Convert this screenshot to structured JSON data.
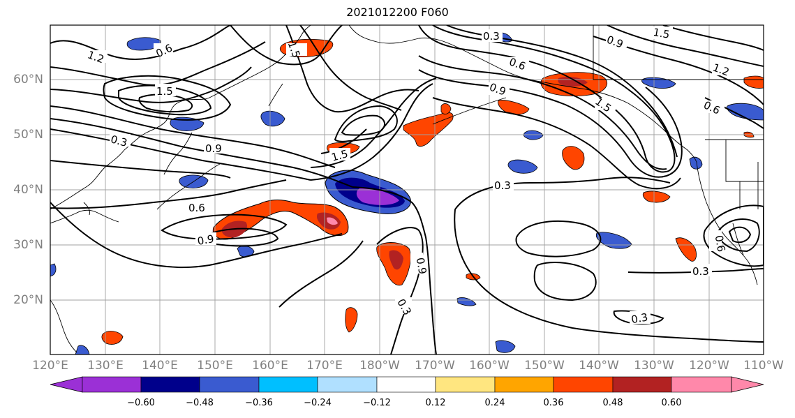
{
  "title": "2021012200 F060",
  "map": {
    "lat_labels": [
      {
        "text": "60°N",
        "lat": 60
      },
      {
        "text": "50°N",
        "lat": 50
      },
      {
        "text": "40°N",
        "lat": 40
      },
      {
        "text": "30°N",
        "lat": 30
      },
      {
        "text": "20°N",
        "lat": 20
      }
    ],
    "lon_labels": [
      "120°E",
      "130°E",
      "140°E",
      "150°E",
      "160°E",
      "170°E",
      "180°W",
      "170°W",
      "160°W",
      "150°W",
      "140°W",
      "130°W",
      "120°W",
      "110°W"
    ],
    "contour_labels": [
      "1.2",
      "0.6",
      "1.5",
      "0.3",
      "0.9",
      "1.5",
      "0.6",
      "0.9",
      "0.3",
      "0.6",
      "0.9",
      "0.9",
      "1.5",
      "1.5",
      "0.6",
      "0.3",
      "0.3",
      "0.3",
      "0.9",
      "0.6",
      "0.3",
      "1.5",
      "1.2"
    ],
    "colors": {
      "purple": "#9b30d6",
      "navy": "#00008b",
      "blue": "#3a5bd0",
      "cyan": "#00bfff",
      "lightblue": "#b0e0ff",
      "yellow": "#ffe680",
      "orange": "#ffa500",
      "redorange": "#ff4500",
      "darkred": "#b22222",
      "pink": "#ff88aa"
    }
  },
  "colorbar": {
    "colors": [
      "#9b30d6",
      "#00008b",
      "#3a5bd0",
      "#00bfff",
      "#b0e0ff",
      "#ffffff",
      "#ffe680",
      "#ffa500",
      "#ff4500",
      "#b22222",
      "#ff88aa"
    ],
    "tick_labels": [
      "−0.60",
      "−0.48",
      "−0.36",
      "−0.24",
      "−0.12",
      "0.12",
      "0.24",
      "0.36",
      "0.48",
      "0.60"
    ]
  }
}
